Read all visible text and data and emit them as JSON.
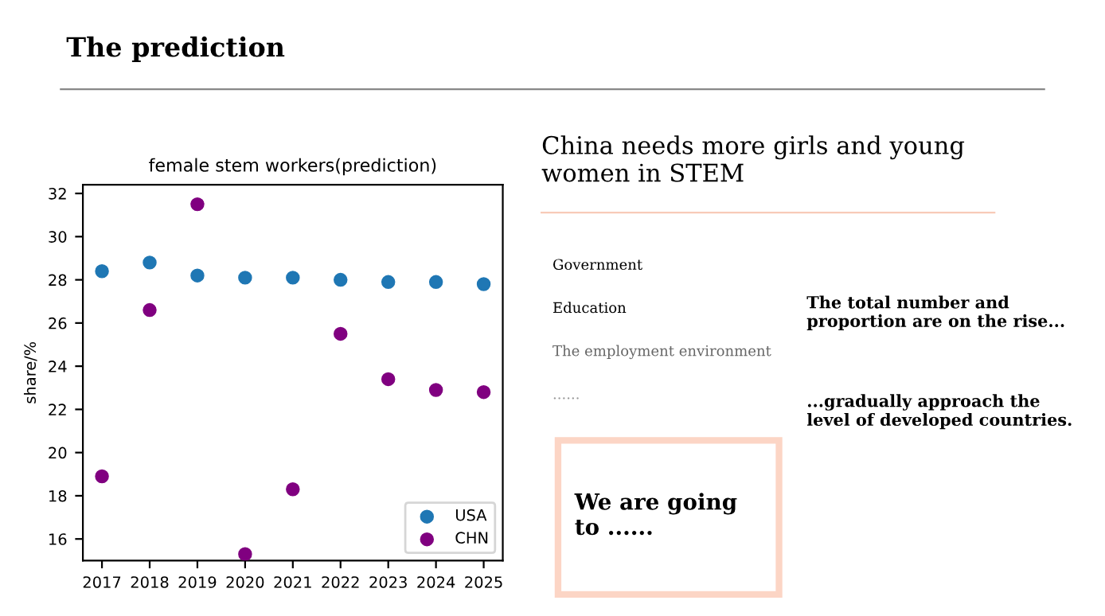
{
  "chart_data": {
    "type": "scatter",
    "title": "female stem workers(prediction)",
    "ylabel": "share/%",
    "x": [
      2017,
      2018,
      2019,
      2020,
      2021,
      2022,
      2023,
      2024,
      2025
    ],
    "series": [
      {
        "name": "USA",
        "color": "#1f77b4",
        "values": [
          28.4,
          28.8,
          28.2,
          28.1,
          28.1,
          28.0,
          27.9,
          27.9,
          27.8
        ]
      },
      {
        "name": "CHN",
        "color": "#800080",
        "values": [
          18.9,
          26.6,
          31.5,
          15.3,
          18.3,
          25.5,
          23.4,
          22.9,
          22.8
        ]
      }
    ],
    "xlim": [
      2016.6,
      2025.4
    ],
    "xticks": [
      2017,
      2018,
      2019,
      2020,
      2021,
      2022,
      2023,
      2024,
      2025
    ],
    "ylim": [
      15,
      32.4
    ],
    "yticks": [
      16,
      18,
      20,
      22,
      24,
      26,
      28,
      30,
      32
    ],
    "grid": false,
    "legend": "lower right",
    "marker": "circle",
    "annotations": [
      "The prediction",
      "China needs more girls and young women in STEM",
      "Government",
      "Education",
      "The employment environment",
      "......",
      "We are going to ......",
      "The total number and proportion are on the rise...",
      "...gradually approach the level of developed countries."
    ]
  }
}
